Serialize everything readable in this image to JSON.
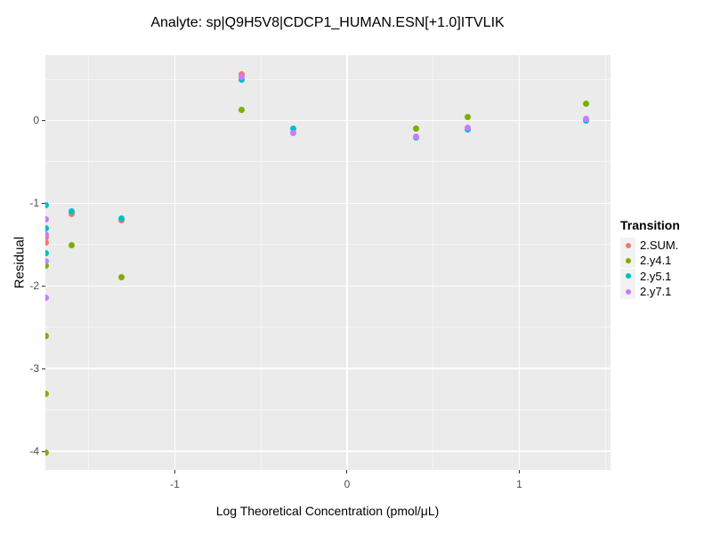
{
  "title": "Analyte: sp|Q9H5V8|CDCP1_HUMAN.ESN[+1.0]ITVLIK",
  "chart_data": {
    "type": "scatter",
    "title": "Analyte: sp|Q9H5V8|CDCP1_HUMAN.ESN[+1.0]ITVLIK",
    "xlabel": "Log Theoretical Concentration (pmol/μL)",
    "ylabel": "Residual",
    "xlim": [
      -1.752,
      1.53
    ],
    "ylim": [
      -4.225,
      0.791
    ],
    "x_ticks": [
      -1,
      0,
      1
    ],
    "y_ticks": [
      0,
      -1,
      -2,
      -3,
      -4
    ],
    "x_minor_gridlines": [
      -1.5,
      -0.5,
      0.5,
      1.5
    ],
    "y_minor_gridlines": [
      0.5,
      -0.5,
      -1.5,
      -2.5,
      -3.5
    ],
    "grid": "on",
    "panel_background": "#EBEBEB",
    "gridline_color": "#FFFFFF",
    "tick_label_color": "#4D4D4D",
    "legend_title": "Transition",
    "legend_position": "right",
    "legend_key_background": "#F2F2F2",
    "series": [
      {
        "name": "2.SUM.",
        "color": "#F8766D",
        "points": [
          [
            -1.75,
            -1.41
          ],
          [
            -1.75,
            -1.48
          ],
          [
            -1.6,
            -1.13
          ],
          [
            -1.31,
            -1.21
          ],
          [
            -0.61,
            0.56
          ]
        ]
      },
      {
        "name": "2.y4.1",
        "color": "#7CAE00",
        "points": [
          [
            -1.75,
            -1.76
          ],
          [
            -1.75,
            -2.61
          ],
          [
            -1.75,
            -3.3
          ],
          [
            -1.75,
            -4.01
          ],
          [
            -1.6,
            -1.51
          ],
          [
            -1.31,
            -1.89
          ],
          [
            -0.61,
            0.13
          ],
          [
            0.4,
            -0.1
          ],
          [
            0.7,
            0.04
          ],
          [
            1.39,
            0.2
          ]
        ]
      },
      {
        "name": "2.y5.1",
        "color": "#00BFC4",
        "points": [
          [
            -1.75,
            -1.02
          ],
          [
            -1.75,
            -1.3
          ],
          [
            -1.75,
            -1.6
          ],
          [
            -1.6,
            -1.1
          ],
          [
            -1.31,
            -1.18
          ],
          [
            -0.61,
            0.49
          ],
          [
            -0.31,
            -0.1
          ],
          [
            0.4,
            -0.21
          ],
          [
            0.7,
            -0.11
          ],
          [
            1.39,
            0.0
          ]
        ]
      },
      {
        "name": "2.y7.1",
        "color": "#C77CFF",
        "points": [
          [
            -1.75,
            -1.2
          ],
          [
            -1.75,
            -1.38
          ],
          [
            -1.75,
            -1.7
          ],
          [
            -1.75,
            -2.14
          ],
          [
            -0.61,
            0.525
          ],
          [
            -0.31,
            -0.15
          ],
          [
            0.4,
            -0.19
          ],
          [
            0.7,
            -0.09
          ],
          [
            1.39,
            0.02
          ]
        ]
      }
    ]
  }
}
